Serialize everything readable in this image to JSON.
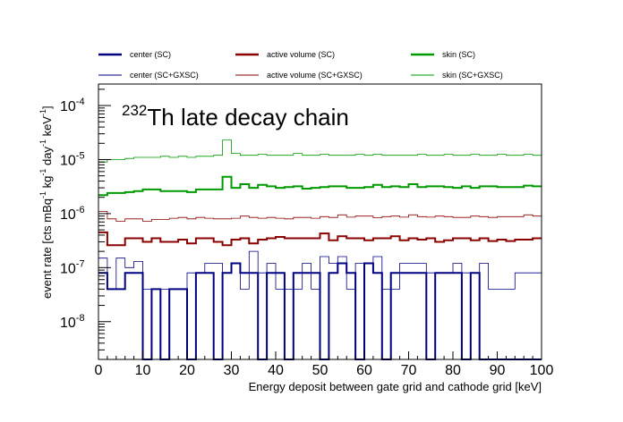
{
  "chart_data": {
    "type": "line",
    "step": true,
    "title": "Th late decay chain",
    "title_superscript": "232",
    "xlabel": "Energy deposit between gate grid and cathode grid [keV]",
    "ylabel": {
      "parts": [
        "event rate [cts mBq",
        "-1",
        " kg",
        "-1",
        " day",
        "-1",
        " keV",
        "-1",
        "]"
      ]
    },
    "xlim": [
      0,
      100
    ],
    "ylim": [
      2e-09,
      0.00025
    ],
    "yscale": "log",
    "x_ticks": [
      0,
      10,
      20,
      30,
      40,
      50,
      60,
      70,
      80,
      90,
      100
    ],
    "x_tick_labels": [
      "0",
      "10",
      "20",
      "30",
      "40",
      "50",
      "60",
      "70",
      "80",
      "90",
      "100"
    ],
    "y_ticks": [
      {
        "value": 1e-08,
        "base": "10",
        "exp": "-8"
      },
      {
        "value": 1e-07,
        "base": "10",
        "exp": "-7"
      },
      {
        "value": 1e-06,
        "base": "10",
        "exp": "-6"
      },
      {
        "value": 1e-05,
        "base": "10",
        "exp": "-5"
      },
      {
        "value": 0.0001,
        "base": "10",
        "exp": "-4"
      }
    ],
    "bin_width": 2,
    "legend_position": "top",
    "grid": false,
    "series": [
      {
        "name": "center (SC)",
        "color": "#000080",
        "width": 2,
        "values": [
          8e-08,
          4e-08,
          4e-08,
          8e-08,
          8e-08,
          0,
          4e-08,
          0,
          4e-08,
          4e-08,
          0,
          8e-08,
          8e-08,
          0,
          8e-08,
          1.2e-07,
          8e-08,
          8e-08,
          0,
          8e-08,
          8e-08,
          0,
          8e-08,
          8e-08,
          8e-08,
          0,
          8e-08,
          1.2e-07,
          8e-08,
          0,
          1.2e-07,
          8e-08,
          0,
          8e-08,
          8e-08,
          8e-08,
          8e-08,
          0,
          8e-08,
          8e-08,
          8e-08,
          0,
          8e-08,
          0,
          0,
          0,
          0,
          0,
          0,
          0
        ]
      },
      {
        "name": "active volume (SC)",
        "color": "#8b0000",
        "width": 2,
        "values": [
          4.5e-07,
          2.6e-07,
          2.6e-07,
          3.5e-07,
          3.5e-07,
          3e-07,
          3.5e-07,
          3e-07,
          3e-07,
          3.3e-07,
          2.8e-07,
          3.5e-07,
          3.5e-07,
          3e-07,
          2.6e-07,
          3.3e-07,
          3.5e-07,
          2.8e-07,
          3.3e-07,
          3.5e-07,
          3.7e-07,
          3.5e-07,
          3.5e-07,
          3.5e-07,
          3.5e-07,
          4.3e-07,
          3.2e-07,
          3.8e-07,
          3.5e-07,
          3.5e-07,
          3.2e-07,
          3.5e-07,
          3.5e-07,
          3.8e-07,
          3.2e-07,
          3.5e-07,
          3.3e-07,
          3.5e-07,
          3e-07,
          3.2e-07,
          3.5e-07,
          3.5e-07,
          3.2e-07,
          3.5e-07,
          3.1e-07,
          3.3e-07,
          3.1e-07,
          3.3e-07,
          3.3e-07,
          3.5e-07
        ]
      },
      {
        "name": "skin (SC)",
        "color": "#009900",
        "width": 2,
        "values": [
          2.2e-06,
          2.4e-06,
          2.4e-06,
          2.5e-06,
          2.6e-06,
          2.8e-06,
          2.8e-06,
          2.6e-06,
          2.6e-06,
          2.6e-06,
          2.5e-06,
          2.8e-06,
          2.8e-06,
          2.8e-06,
          4.8e-06,
          3e-06,
          3.5e-06,
          3e-06,
          3.4e-06,
          3.2e-06,
          3e-06,
          3.1e-06,
          3.2e-06,
          2.9e-06,
          3e-06,
          3.1e-06,
          3.2e-06,
          3.2e-06,
          3e-06,
          3e-06,
          3.1e-06,
          3.4e-06,
          3.1e-06,
          3.2e-06,
          3.1e-06,
          3.5e-06,
          3.1e-06,
          3.2e-06,
          3.2e-06,
          3.1e-06,
          3e-06,
          3.2e-06,
          3e-06,
          3.2e-06,
          3.2e-06,
          3.1e-06,
          3.1e-06,
          3.1e-06,
          3.3e-06,
          3.2e-06
        ]
      },
      {
        "name": "center (SC+GXSC)",
        "color": "#000080",
        "width": 0.8,
        "values": [
          1.5e-07,
          4e-08,
          1.5e-07,
          1e-07,
          1.3e-07,
          4e-08,
          4e-08,
          4e-08,
          4e-08,
          4e-08,
          8e-08,
          8e-08,
          1.2e-07,
          1.2e-07,
          8e-08,
          1.2e-07,
          4e-08,
          2e-07,
          8e-08,
          1.2e-07,
          4e-08,
          4e-08,
          4e-08,
          1.2e-07,
          4e-08,
          1.6e-07,
          1.2e-07,
          1.6e-07,
          4e-08,
          1.2e-07,
          1.2e-07,
          1.6e-07,
          4e-08,
          4e-08,
          1.2e-07,
          1.2e-07,
          1.2e-07,
          8e-08,
          8e-08,
          8e-08,
          1.2e-07,
          8e-08,
          8e-08,
          1.2e-07,
          4e-08,
          4e-08,
          4e-08,
          8e-08,
          8e-08,
          8e-08
        ]
      },
      {
        "name": "active volume (SC+GXSC)",
        "color": "#8b0000",
        "width": 0.8,
        "values": [
          1.1e-06,
          8e-07,
          7.2e-07,
          8e-07,
          8e-07,
          7.2e-07,
          7.8e-07,
          7.8e-07,
          8.2e-07,
          8.5e-07,
          8e-07,
          8.5e-07,
          8.2e-07,
          8e-07,
          8e-07,
          8.2e-07,
          9e-07,
          8.5e-07,
          8.2e-07,
          8.5e-07,
          8.2e-07,
          8e-07,
          8.5e-07,
          8.5e-07,
          8.2e-07,
          8.8e-07,
          8.5e-07,
          9.5e-07,
          8.6e-07,
          9e-07,
          9e-07,
          8.4e-07,
          8.8e-07,
          9e-07,
          8.6e-07,
          9.5e-07,
          8.8e-07,
          8.6e-07,
          9e-07,
          8.8e-07,
          8.5e-07,
          8.5e-07,
          9e-07,
          8.8e-07,
          8.5e-07,
          8.8e-07,
          8.8e-07,
          8.8e-07,
          9.5e-07,
          9e-07
        ]
      },
      {
        "name": "skin (SC+GXSC)",
        "color": "#009900",
        "width": 0.8,
        "values": [
          9e-06,
          1e-05,
          1e-05,
          1.05e-05,
          1.1e-05,
          1.1e-05,
          1.1e-05,
          1.15e-05,
          1.1e-05,
          1.15e-05,
          1.1e-05,
          1.15e-05,
          1.15e-05,
          1.2e-05,
          2.3e-05,
          1.3e-05,
          1.2e-05,
          1.2e-05,
          1.25e-05,
          1.2e-05,
          1.2e-05,
          1.2e-05,
          1.3e-05,
          1.2e-05,
          1.2e-05,
          1.25e-05,
          1.2e-05,
          1.2e-05,
          1.2e-05,
          1.25e-05,
          1.2e-05,
          1.25e-05,
          1.2e-05,
          1.2e-05,
          1.2e-05,
          1.2e-05,
          1.25e-05,
          1.2e-05,
          1.2e-05,
          1.25e-05,
          1.2e-05,
          1.2e-05,
          1.25e-05,
          1.2e-05,
          1.2e-05,
          1.25e-05,
          1.2e-05,
          1.2e-05,
          1.25e-05,
          1.2e-05
        ]
      }
    ]
  }
}
